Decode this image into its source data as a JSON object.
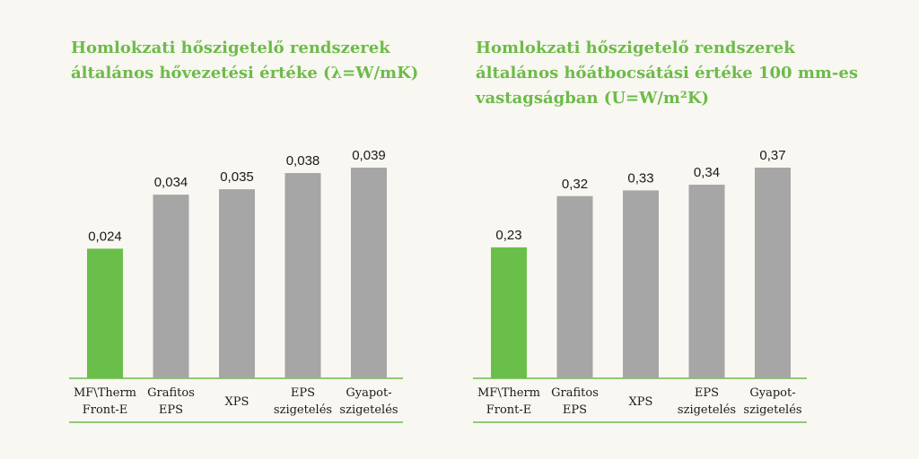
{
  "accent_color": "#6dbb4a",
  "highlight_bar_color": "#6abf4b",
  "bar_color": "#a6a6a6",
  "chart_data": [
    {
      "type": "bar",
      "title_lines": [
        "Homlokzati hőszigetelő rendszerek",
        "általános hővezetési értéke (λ=W/mK)"
      ],
      "categories": [
        [
          "MF\\Therm",
          "Front-E"
        ],
        [
          "Grafitos",
          "EPS"
        ],
        [
          "XPS"
        ],
        [
          "EPS",
          "szigetelés"
        ],
        [
          "Gyapot-",
          "szigetelés"
        ]
      ],
      "values": [
        0.024,
        0.034,
        0.035,
        0.038,
        0.039
      ],
      "value_labels": [
        "0,024",
        "0,034",
        "0,035",
        "0,038",
        "0,039"
      ],
      "highlight_index": 0,
      "ylim": [
        0,
        0.039
      ],
      "grid": false
    },
    {
      "type": "bar",
      "title_lines": [
        "Homlokzati hőszigetelő rendszerek",
        "általános hőátbocsátási értéke 100 mm-es",
        "vastagságban (U=W/m²K)"
      ],
      "categories": [
        [
          "MF\\Therm",
          "Front-E"
        ],
        [
          "Grafitos",
          "EPS"
        ],
        [
          "XPS"
        ],
        [
          "EPS",
          "szigetelés"
        ],
        [
          "Gyapot-",
          "szigetelés"
        ]
      ],
      "values": [
        0.23,
        0.32,
        0.33,
        0.34,
        0.37
      ],
      "value_labels": [
        "0,23",
        "0,32",
        "0,33",
        "0,34",
        "0,37"
      ],
      "highlight_index": 0,
      "ylim": [
        0,
        0.37
      ],
      "grid": false
    }
  ]
}
